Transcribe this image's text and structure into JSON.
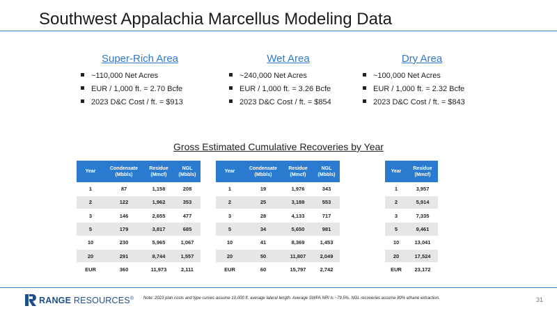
{
  "title": "Southwest Appalachia Marcellus Modeling Data",
  "areas": [
    {
      "name": "Super-Rich Area",
      "bullets": [
        "~110,000 Net Acres",
        "EUR / 1,000 ft. = 2.70 Bcfe",
        "2023 D&C Cost / ft. = $913"
      ]
    },
    {
      "name": "Wet Area",
      "bullets": [
        "~240,000 Net Acres",
        "EUR / 1,000 ft. = 3.26 Bcfe",
        "2023 D&C Cost / ft. = $854"
      ]
    },
    {
      "name": "Dry Area",
      "bullets": [
        "~100,000 Net Acres",
        "EUR / 1,000 ft. = 2.32 Bcfe",
        "2023 D&C Cost / ft. = $843"
      ]
    }
  ],
  "section_title": "Gross Estimated Cumulative Recoveries by Year",
  "tables": [
    {
      "headers": [
        [
          "Year"
        ],
        [
          "Condensate",
          "(Mbbls)"
        ],
        [
          "Residue",
          "(Mmcf)"
        ],
        [
          "NGL",
          "(Mbbls)"
        ]
      ],
      "rows": [
        [
          "1",
          "87",
          "1,158",
          "208"
        ],
        [
          "2",
          "122",
          "1,962",
          "353"
        ],
        [
          "3",
          "146",
          "2,655",
          "477"
        ],
        [
          "5",
          "179",
          "3,817",
          "685"
        ],
        [
          "10",
          "230",
          "5,965",
          "1,067"
        ],
        [
          "20",
          "291",
          "8,744",
          "1,557"
        ],
        [
          "EUR",
          "360",
          "11,973",
          "2,111"
        ]
      ]
    },
    {
      "headers": [
        [
          "Year"
        ],
        [
          "Condensate",
          "(Mbbls)"
        ],
        [
          "Residue",
          "(Mmcf)"
        ],
        [
          "NGL",
          "(Mbbls)"
        ]
      ],
      "rows": [
        [
          "1",
          "19",
          "1,976",
          "343"
        ],
        [
          "2",
          "25",
          "3,188",
          "553"
        ],
        [
          "3",
          "28",
          "4,133",
          "717"
        ],
        [
          "5",
          "34",
          "5,650",
          "981"
        ],
        [
          "10",
          "41",
          "8,369",
          "1,453"
        ],
        [
          "20",
          "50",
          "11,807",
          "2,049"
        ],
        [
          "EUR",
          "60",
          "15,797",
          "2,742"
        ]
      ]
    },
    {
      "headers": [
        [
          "Year"
        ],
        [
          "Residue",
          "(Mmcf)"
        ]
      ],
      "rows": [
        [
          "1",
          "3,957"
        ],
        [
          "2",
          "5,914"
        ],
        [
          "3",
          "7,335"
        ],
        [
          "5",
          "9,461"
        ],
        [
          "10",
          "13,041"
        ],
        [
          "20",
          "17,524"
        ],
        [
          "EUR",
          "23,172"
        ]
      ]
    }
  ],
  "footer": {
    "logo_bold": "RANGE",
    "logo_light": "RESOURCES",
    "logo_mark": "®",
    "note": "Note: 2023 plan costs and type curves assume 10,000 ft. average lateral length. Average SWPA NRI is ~79.5%. NGL recoveries assume 80% ethane extraction.",
    "page_number": "31"
  },
  "colors": {
    "accent": "#2a7bd0",
    "title_blue": "#2e79c7",
    "logo": "#1d4f8c",
    "row_shade": "#e6e6e6"
  }
}
